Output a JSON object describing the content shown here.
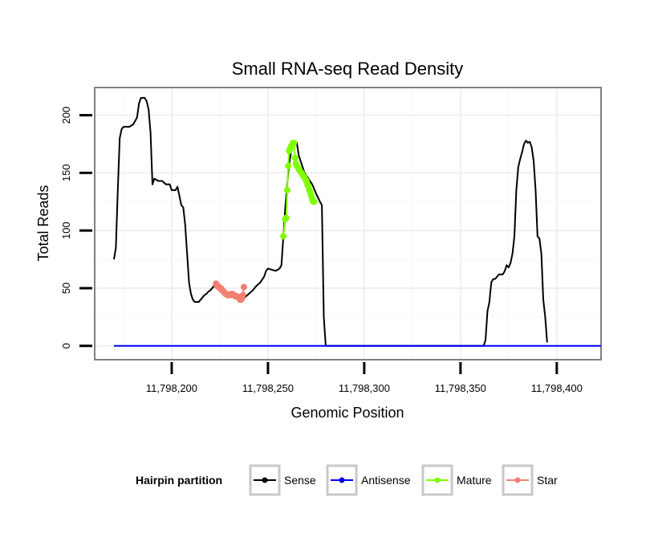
{
  "chart_data": {
    "type": "line",
    "title": "Small RNA-seq Read Density",
    "xlabel": "Genomic Position",
    "ylabel": "Total Reads",
    "xlim": [
      11798160,
      11798423
    ],
    "ylim": [
      -12,
      224
    ],
    "x_ticks": [
      11798200,
      11798250,
      11798300,
      11798350,
      11798400
    ],
    "x_tick_labels": [
      "11,798,200",
      "11,798,250",
      "11,798,300",
      "11,798,350",
      "11,798,400"
    ],
    "y_ticks": [
      0,
      50,
      100,
      150,
      200
    ],
    "y_tick_labels": [
      "0",
      "50",
      "100",
      "150",
      "200"
    ],
    "grid": true,
    "legend": {
      "title": "Hairpin partition",
      "position": "bottom",
      "entries": [
        {
          "name": "Sense",
          "color": "#000000"
        },
        {
          "name": "Antisense",
          "color": "#0000ff"
        },
        {
          "name": "Mature",
          "color": "#7fff00"
        },
        {
          "name": "Star",
          "color": "#f08070"
        }
      ]
    },
    "series": [
      {
        "name": "Sense",
        "color": "#000000",
        "style": "line",
        "points": [
          [
            11798170,
            75
          ],
          [
            11798171,
            85
          ],
          [
            11798172,
            135
          ],
          [
            11798173,
            180
          ],
          [
            11798174,
            188
          ],
          [
            11798175,
            190
          ],
          [
            11798178,
            190
          ],
          [
            11798180,
            192
          ],
          [
            11798181,
            195
          ],
          [
            11798182,
            198
          ],
          [
            11798183,
            210
          ],
          [
            11798184,
            215
          ],
          [
            11798186,
            215
          ],
          [
            11798187,
            212
          ],
          [
            11798188,
            205
          ],
          [
            11798189,
            185
          ],
          [
            11798190,
            140
          ],
          [
            11798191,
            145
          ],
          [
            11798193,
            143
          ],
          [
            11798195,
            143
          ],
          [
            11798197,
            140
          ],
          [
            11798199,
            140
          ],
          [
            11798200,
            135
          ],
          [
            11798202,
            135
          ],
          [
            11798203,
            138
          ],
          [
            11798204,
            130
          ],
          [
            11798205,
            122
          ],
          [
            11798206,
            120
          ],
          [
            11798207,
            105
          ],
          [
            11798208,
            80
          ],
          [
            11798209,
            55
          ],
          [
            11798210,
            45
          ],
          [
            11798211,
            40
          ],
          [
            11798212,
            38
          ],
          [
            11798214,
            38
          ],
          [
            11798215,
            40
          ],
          [
            11798216,
            42
          ],
          [
            11798217,
            44
          ],
          [
            11798218,
            45
          ],
          [
            11798219,
            47
          ],
          [
            11798220,
            48
          ],
          [
            11798222,
            52
          ],
          [
            11798224,
            49
          ],
          [
            11798226,
            46
          ],
          [
            11798228,
            44
          ],
          [
            11798230,
            44
          ],
          [
            11798232,
            43
          ],
          [
            11798234,
            42
          ],
          [
            11798236,
            41
          ],
          [
            11798238,
            42
          ],
          [
            11798240,
            45
          ],
          [
            11798242,
            48
          ],
          [
            11798244,
            52
          ],
          [
            11798246,
            55
          ],
          [
            11798248,
            60
          ],
          [
            11798249,
            65
          ],
          [
            11798250,
            67
          ],
          [
            11798252,
            66
          ],
          [
            11798254,
            65
          ],
          [
            11798256,
            67
          ],
          [
            11798257,
            70
          ],
          [
            11798258,
            95
          ],
          [
            11798259,
            120
          ],
          [
            11798260,
            140
          ],
          [
            11798261,
            158
          ],
          [
            11798262,
            168
          ],
          [
            11798263,
            172
          ],
          [
            11798264,
            175
          ],
          [
            11798265,
            176
          ],
          [
            11798266,
            165
          ],
          [
            11798267,
            160
          ],
          [
            11798269,
            150
          ],
          [
            11798271,
            145
          ],
          [
            11798273,
            140
          ],
          [
            11798275,
            132
          ],
          [
            11798277,
            125
          ],
          [
            11798278,
            122
          ],
          [
            11798279,
            25
          ],
          [
            11798280,
            0
          ],
          [
            11798300,
            0
          ],
          [
            11798320,
            0
          ],
          [
            11798340,
            0
          ],
          [
            11798362,
            0
          ],
          [
            11798363,
            5
          ],
          [
            11798364,
            30
          ],
          [
            11798365,
            38
          ],
          [
            11798366,
            55
          ],
          [
            11798367,
            58
          ],
          [
            11798368,
            58
          ],
          [
            11798369,
            60
          ],
          [
            11798370,
            62
          ],
          [
            11798372,
            62
          ],
          [
            11798373,
            65
          ],
          [
            11798374,
            70
          ],
          [
            11798375,
            68
          ],
          [
            11798376,
            72
          ],
          [
            11798377,
            80
          ],
          [
            11798378,
            95
          ],
          [
            11798379,
            135
          ],
          [
            11798380,
            155
          ],
          [
            11798381,
            162
          ],
          [
            11798382,
            168
          ],
          [
            11798383,
            175
          ],
          [
            11798384,
            178
          ],
          [
            11798385,
            176
          ],
          [
            11798386,
            177
          ],
          [
            11798387,
            172
          ],
          [
            11798388,
            160
          ],
          [
            11798389,
            135
          ],
          [
            11798390,
            95
          ],
          [
            11798391,
            93
          ],
          [
            11798392,
            80
          ],
          [
            11798393,
            40
          ],
          [
            11798394,
            25
          ],
          [
            11798395,
            3
          ]
        ]
      },
      {
        "name": "Antisense",
        "color": "#0000ff",
        "style": "line",
        "points": [
          [
            11798170,
            0
          ],
          [
            11798423,
            0
          ]
        ]
      },
      {
        "name": "Mature",
        "color": "#7fff00",
        "style": "line+points",
        "points": [
          [
            11798258,
            95
          ],
          [
            11798259,
            110
          ],
          [
            11798259.5,
            111
          ],
          [
            11798260,
            135
          ],
          [
            11798260.5,
            156
          ],
          [
            11798261,
            169
          ],
          [
            11798261.5,
            171
          ],
          [
            11798262,
            173
          ],
          [
            11798262.5,
            174
          ],
          [
            11798263,
            176
          ],
          [
            11798263.5,
            176
          ],
          [
            11798264,
            163
          ],
          [
            11798264.5,
            158
          ],
          [
            11798265,
            156
          ],
          [
            11798265.5,
            155
          ],
          [
            11798266,
            153
          ],
          [
            11798266.5,
            152
          ],
          [
            11798267,
            151
          ],
          [
            11798267.5,
            150
          ],
          [
            11798268,
            148
          ],
          [
            11798268.5,
            147
          ],
          [
            11798269,
            146
          ],
          [
            11798269.5,
            144
          ],
          [
            11798270,
            143
          ],
          [
            11798270.5,
            140
          ],
          [
            11798271,
            138
          ],
          [
            11798271.5,
            135
          ],
          [
            11798272,
            133
          ],
          [
            11798272.5,
            130
          ],
          [
            11798273,
            127
          ],
          [
            11798273.5,
            125
          ],
          [
            11798274,
            125
          ]
        ]
      },
      {
        "name": "Star",
        "color": "#f08070",
        "style": "line+points",
        "points": [
          [
            11798223,
            54
          ],
          [
            11798223.5,
            52
          ],
          [
            11798224,
            52
          ],
          [
            11798224.5,
            51
          ],
          [
            11798225,
            50
          ],
          [
            11798225.5,
            50
          ],
          [
            11798226,
            49
          ],
          [
            11798226.5,
            48
          ],
          [
            11798227,
            47
          ],
          [
            11798227.5,
            46
          ],
          [
            11798228,
            45
          ],
          [
            11798228.5,
            45
          ],
          [
            11798229,
            44
          ],
          [
            11798229.5,
            44
          ],
          [
            11798230,
            44
          ],
          [
            11798230.5,
            44
          ],
          [
            11798231,
            45
          ],
          [
            11798231.5,
            45
          ],
          [
            11798232,
            44
          ],
          [
            11798232.5,
            44
          ],
          [
            11798233,
            43
          ],
          [
            11798233.5,
            43
          ],
          [
            11798234,
            43
          ],
          [
            11798234.5,
            42
          ],
          [
            11798235,
            42
          ],
          [
            11798235.5,
            40
          ],
          [
            11798236,
            40
          ],
          [
            11798236.5,
            41
          ],
          [
            11798237,
            44
          ],
          [
            11798237.5,
            51
          ]
        ]
      }
    ]
  }
}
